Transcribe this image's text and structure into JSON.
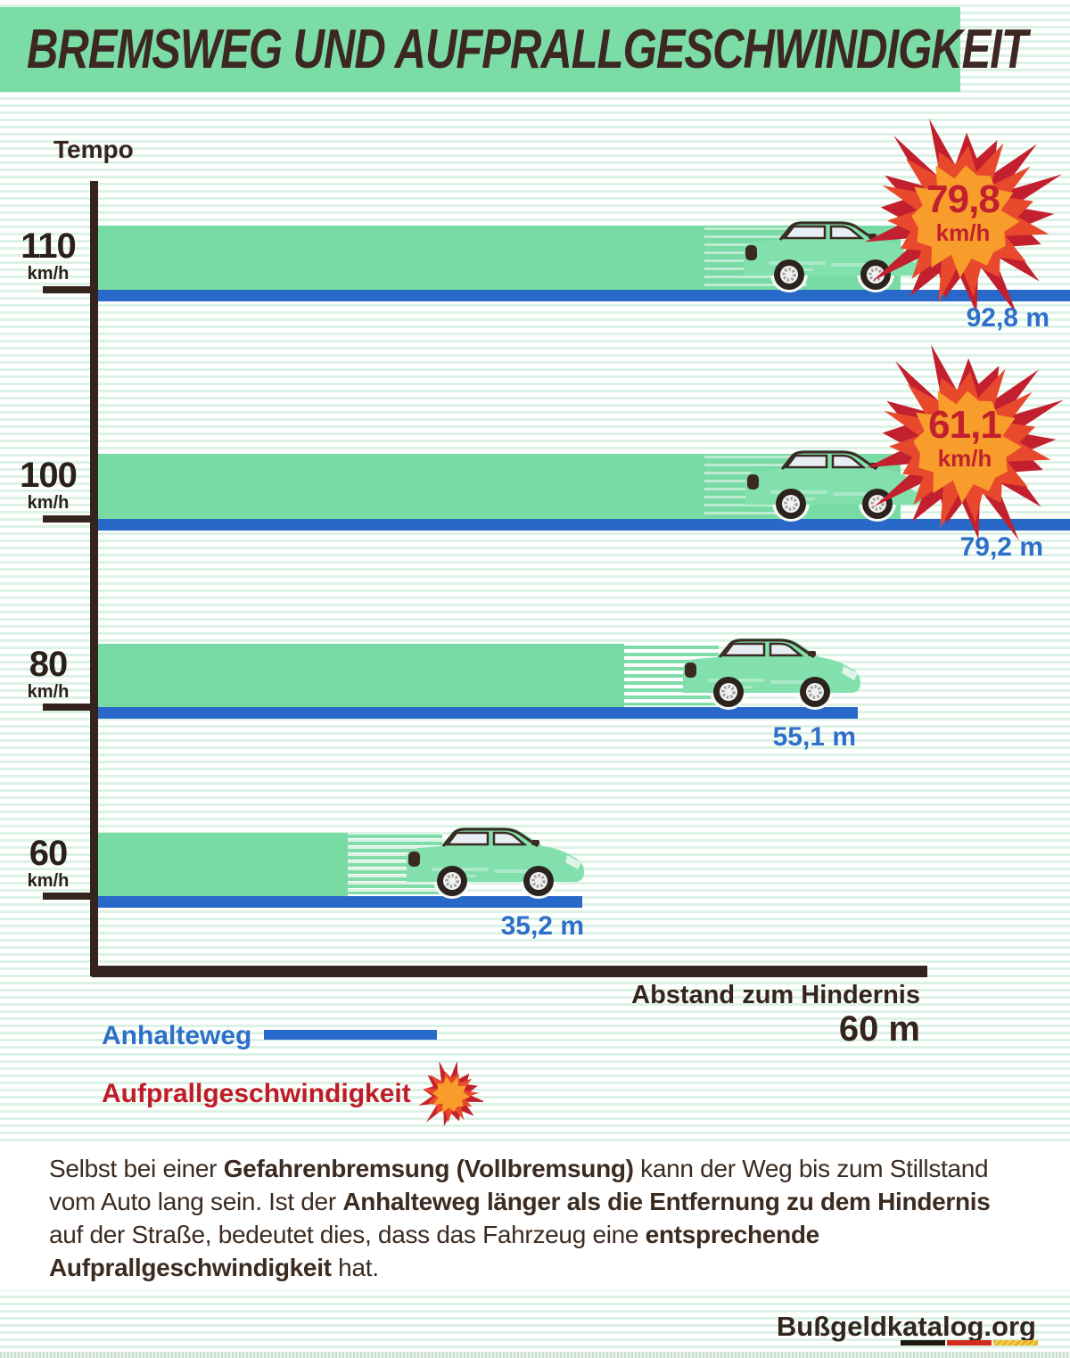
{
  "title": "BREMSWEG UND AUFPRALLGESCHWINDIGKEIT",
  "axis": {
    "y_label": "Tempo",
    "x_label": "Abstand zum Hindernis",
    "x_value": "60 m"
  },
  "rows": [
    {
      "speed": "110",
      "unit": "km/h",
      "distance": "92,8 m",
      "impact_value": "79,8",
      "impact_unit": "km/h"
    },
    {
      "speed": "100",
      "unit": "km/h",
      "distance": "79,2 m",
      "impact_value": "61,1",
      "impact_unit": "km/h"
    },
    {
      "speed": "80",
      "unit": "km/h",
      "distance": "55,1 m"
    },
    {
      "speed": "60",
      "unit": "km/h",
      "distance": "35,2 m"
    }
  ],
  "legend": {
    "stopping_label": "Anhalteweg",
    "impact_label": "Aufprallgeschwindigkeit"
  },
  "paragraph": {
    "segments": [
      {
        "t": "Selbst bei einer ",
        "b": false
      },
      {
        "t": "Gefahrenbremsung (Vollbremsung)",
        "b": true
      },
      {
        "t": " kann der Weg bis zum Stillstand vom Auto lang sein. Ist der ",
        "b": false
      },
      {
        "t": "Anhalteweg länger als die Entfernung zu dem Hindernis",
        "b": true
      },
      {
        "t": " auf der Straße, bedeutet dies, dass das Fahrzeug eine ",
        "b": false
      },
      {
        "t": "entsprechende Aufprallgeschwindigkeit",
        "b": true
      },
      {
        "t": " hat.",
        "b": false
      }
    ]
  },
  "footer": {
    "brand": "Bußgeldkatalog.org"
  },
  "colors": {
    "banner_green": "#7bdca6",
    "bar_green": "#78dba4",
    "line_blue": "#2768c8",
    "label_blue": "#2e6fc9",
    "axis_dark": "#35241d",
    "burst_red": "#c2202e",
    "burst_red_bright": "#e8492c",
    "burst_orange": "#f89c2b",
    "stripe_green": "#dcf2e5"
  },
  "chart_data": {
    "type": "bar",
    "orientation": "horizontal",
    "title": "Bremsweg und Aufprallgeschwindigkeit",
    "categories": [
      "110 km/h",
      "100 km/h",
      "80 km/h",
      "60 km/h"
    ],
    "series": [
      {
        "name": "Anhalteweg",
        "unit": "m",
        "values": [
          92.8,
          79.2,
          55.1,
          35.2
        ]
      },
      {
        "name": "Aufprallgeschwindigkeit",
        "unit": "km/h",
        "values": [
          79.8,
          61.1,
          null,
          null
        ]
      }
    ],
    "xlabel": "Abstand zum Hindernis",
    "ylabel": "Tempo",
    "annotations": {
      "obstacle_distance": "60 m"
    },
    "legend_position": "bottom-left",
    "grid": false
  }
}
